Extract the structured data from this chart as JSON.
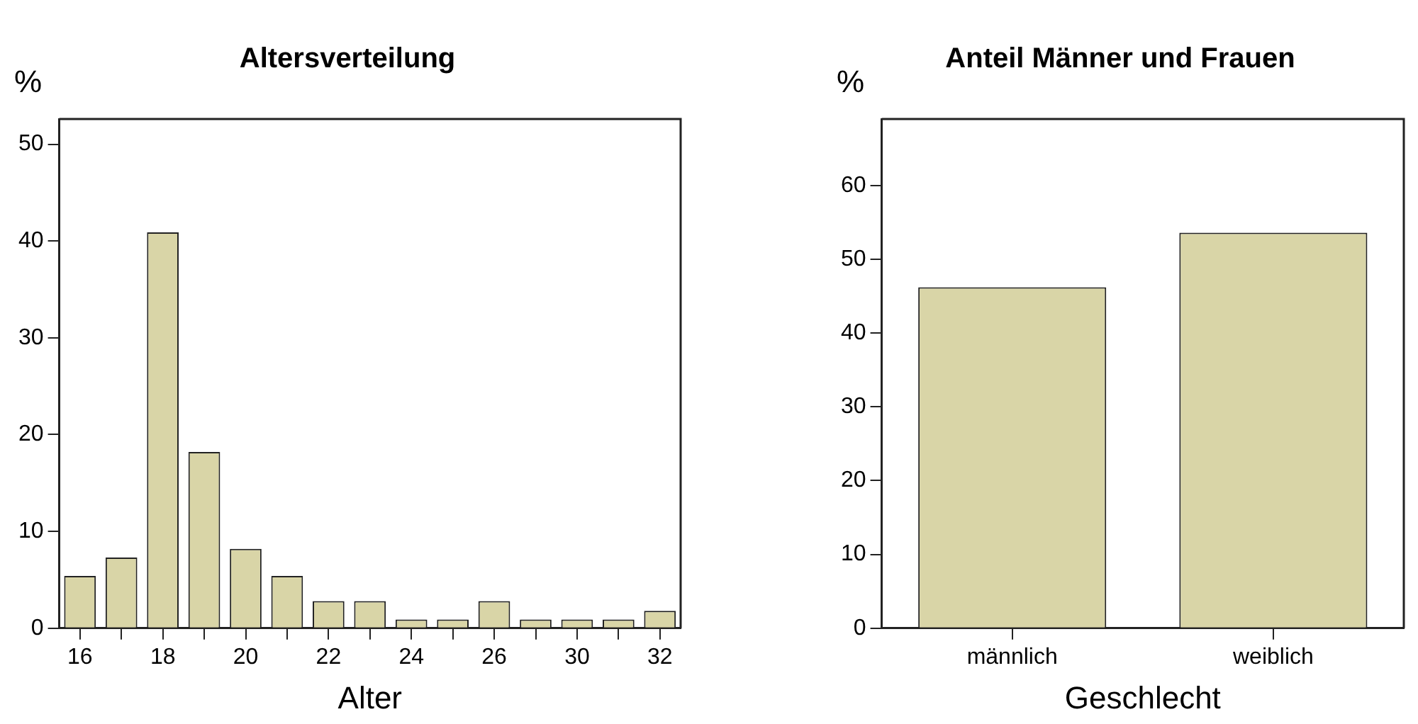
{
  "chart_data": [
    {
      "type": "bar",
      "title": "Altersverteilung",
      "xlabel": "Alter",
      "ylabel": "%",
      "categories": [
        "16",
        null,
        "18",
        null,
        "20",
        null,
        "22",
        null,
        "24",
        null,
        "26",
        null,
        "30",
        null,
        "32"
      ],
      "series": [
        {
          "color": "#d9d5a7",
          "values": [
            5.4,
            7.3,
            40.9,
            18.2,
            8.2,
            5.4,
            2.8,
            2.8,
            0.9,
            0.9,
            2.8,
            0.9,
            0.9,
            0.9,
            1.8
          ]
        }
      ],
      "ylim": [
        0,
        52.6
      ],
      "yticks": [
        0,
        10,
        20,
        30,
        40,
        50
      ],
      "grid": false,
      "legend": false
    },
    {
      "type": "bar",
      "title": "Anteil Männer und Frauen",
      "xlabel": "Geschlecht",
      "ylabel": "%",
      "categories": [
        "männlich",
        "weiblich"
      ],
      "series": [
        {
          "color": "#d9d5a7",
          "values": [
            46.2,
            53.6
          ]
        }
      ],
      "ylim": [
        0,
        69
      ],
      "yticks": [
        0,
        10,
        20,
        30,
        40,
        50,
        60
      ],
      "grid": false,
      "legend": false
    }
  ]
}
